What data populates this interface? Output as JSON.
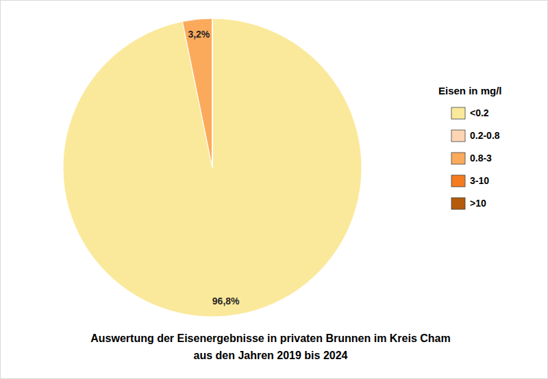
{
  "chart_data": {
    "type": "pie",
    "title": "Auswertung der Eisenergebnisse in privaten Brunnen im Kreis Cham\naus den Jahren 2019 bis 2024",
    "legend_title": "Eisen in mg/l",
    "categories": [
      "<0.2",
      "0.2-0.8",
      "0.8-3",
      "3-10",
      ">10"
    ],
    "values": [
      96.8,
      0,
      3.2,
      0,
      0
    ],
    "value_labels": [
      "96,8%",
      null,
      "3,2%",
      null,
      null
    ],
    "colors": [
      "#fbe99b",
      "#fcd5b4",
      "#fbaa5c",
      "#f47b1f",
      "#b45a0a"
    ],
    "data_labels": true,
    "legend": "right"
  }
}
